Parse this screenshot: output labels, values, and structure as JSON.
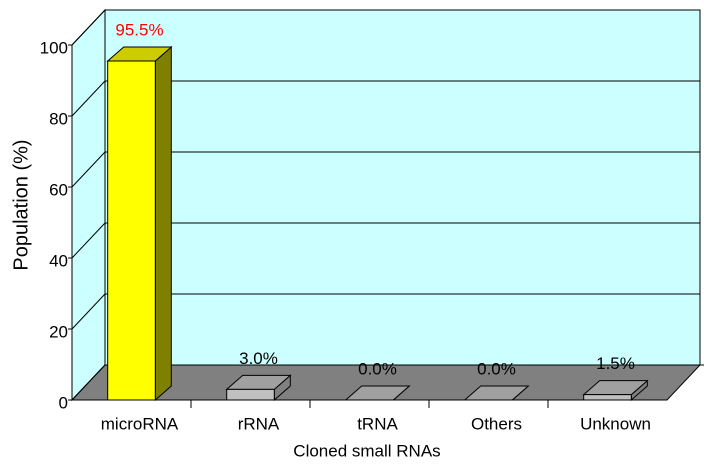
{
  "chart_data": {
    "type": "bar3d",
    "categories": [
      "microRNA",
      "rRNA",
      "tRNA",
      "Others",
      "Unknown"
    ],
    "values": [
      95.5,
      3.0,
      0.0,
      0.0,
      1.5
    ],
    "value_labels": [
      "95.5%",
      "3.0%",
      "0.0%",
      "0.0%",
      "1.5%"
    ],
    "colors": [
      "#ffff00",
      "#c0c0c0",
      "#c0c0c0",
      "#c0c0c0",
      "#c0c0c0"
    ],
    "value_label_colors": [
      "#ff0000",
      "#000000",
      "#000000",
      "#000000",
      "#000000"
    ],
    "xlabel": "Cloned small RNAs",
    "ylabel": "Population (%)",
    "ylim": [
      0,
      100
    ],
    "yticks": [
      0,
      20,
      40,
      60,
      80,
      100
    ],
    "grid": true,
    "wall_color": "#ccffff",
    "floor_color": "#808080"
  }
}
